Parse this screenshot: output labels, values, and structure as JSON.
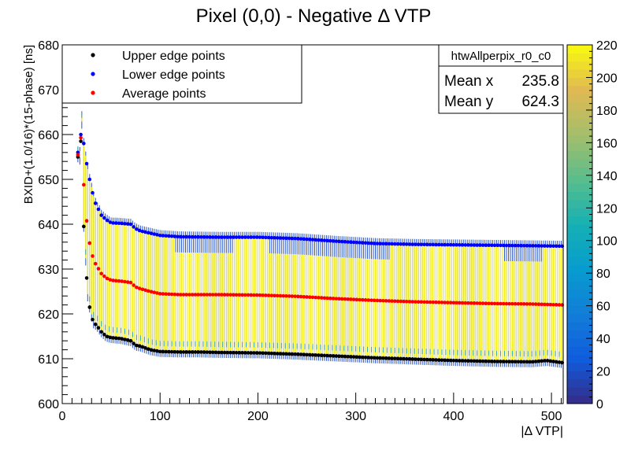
{
  "chart_data": {
    "type": "scatter",
    "title": "Pixel (0,0) - Negative  Δ VTP",
    "xlabel": "|Δ VTP|",
    "ylabel": "BXID+(1.0/16)*(15-phase)  [ns]",
    "xlim": [
      0,
      512
    ],
    "ylim": [
      600,
      680
    ],
    "x_ticks": [
      "0",
      "100",
      "200",
      "300",
      "400",
      "500"
    ],
    "y_ticks": [
      "600",
      "610",
      "620",
      "630",
      "640",
      "650",
      "660",
      "670",
      "680"
    ],
    "grid": false,
    "legend_position": "top-left",
    "series": [
      {
        "name": "Upper edge points",
        "color": "#000000",
        "points": [
          [
            16,
            655
          ],
          [
            18,
            654.5
          ],
          [
            20,
            662.5
          ],
          [
            22,
            639.5
          ],
          [
            24,
            632
          ],
          [
            26,
            624
          ],
          [
            28,
            621.5
          ],
          [
            30,
            619.5
          ],
          [
            32,
            618
          ],
          [
            35,
            617.5
          ],
          [
            40,
            616
          ],
          [
            45,
            615
          ],
          [
            50,
            614.7
          ],
          [
            60,
            614.5
          ],
          [
            70,
            614
          ],
          [
            75,
            613
          ],
          [
            80,
            612.8
          ],
          [
            90,
            612
          ],
          [
            100,
            611.6
          ],
          [
            120,
            611.5
          ],
          [
            140,
            611.5
          ],
          [
            160,
            611.4
          ],
          [
            200,
            611.3
          ],
          [
            240,
            611
          ],
          [
            280,
            610.6
          ],
          [
            320,
            610.2
          ],
          [
            360,
            609.9
          ],
          [
            400,
            609.6
          ],
          [
            440,
            609.4
          ],
          [
            480,
            609.3
          ],
          [
            495,
            609.6
          ],
          [
            512,
            609.1
          ]
        ]
      },
      {
        "name": "Lower edge points",
        "color": "#0000ff",
        "points": [
          [
            16,
            656
          ],
          [
            18,
            656
          ],
          [
            20,
            664
          ],
          [
            22,
            658
          ],
          [
            24,
            655
          ],
          [
            26,
            652
          ],
          [
            28,
            650
          ],
          [
            30,
            648
          ],
          [
            32,
            646
          ],
          [
            35,
            644
          ],
          [
            38,
            643
          ],
          [
            40,
            642
          ],
          [
            45,
            641
          ],
          [
            50,
            640.3
          ],
          [
            60,
            640.2
          ],
          [
            70,
            640
          ],
          [
            75,
            639
          ],
          [
            80,
            638.5
          ],
          [
            90,
            638
          ],
          [
            100,
            637.5
          ],
          [
            120,
            637.2
          ],
          [
            160,
            637.1
          ],
          [
            200,
            637.1
          ],
          [
            240,
            636.8
          ],
          [
            280,
            636.2
          ],
          [
            320,
            635.7
          ],
          [
            360,
            635.5
          ],
          [
            400,
            635.4
          ],
          [
            440,
            635.3
          ],
          [
            480,
            635.2
          ],
          [
            512,
            635.1
          ]
        ]
      },
      {
        "name": "Average points",
        "color": "#ff0000",
        "points": [
          [
            16,
            655.5
          ],
          [
            18,
            655.3
          ],
          [
            20,
            663.3
          ],
          [
            22,
            648.8
          ],
          [
            24,
            643.5
          ],
          [
            26,
            638
          ],
          [
            28,
            635.8
          ],
          [
            30,
            633.8
          ],
          [
            32,
            632
          ],
          [
            35,
            630.8
          ],
          [
            40,
            629
          ],
          [
            45,
            628
          ],
          [
            50,
            627.5
          ],
          [
            60,
            627.3
          ],
          [
            70,
            627
          ],
          [
            75,
            626
          ],
          [
            80,
            625.6
          ],
          [
            90,
            625
          ],
          [
            100,
            624.5
          ],
          [
            120,
            624.3
          ],
          [
            160,
            624.3
          ],
          [
            200,
            624.2
          ],
          [
            240,
            623.9
          ],
          [
            280,
            623.4
          ],
          [
            320,
            623
          ],
          [
            360,
            622.7
          ],
          [
            400,
            622.5
          ],
          [
            440,
            622.3
          ],
          [
            480,
            622.2
          ],
          [
            512,
            622
          ]
        ]
      }
    ],
    "stats_box": {
      "name": "htwAllperpix_r0_c0",
      "mean_x_label": "Mean x",
      "mean_x": "235.8",
      "mean_y_label": "Mean y",
      "mean_y": "624.3"
    },
    "colorbar": {
      "range": [
        0,
        220
      ],
      "ticks": [
        "0",
        "20",
        "40",
        "60",
        "80",
        "100",
        "120",
        "140",
        "160",
        "180",
        "200",
        "220"
      ]
    }
  }
}
